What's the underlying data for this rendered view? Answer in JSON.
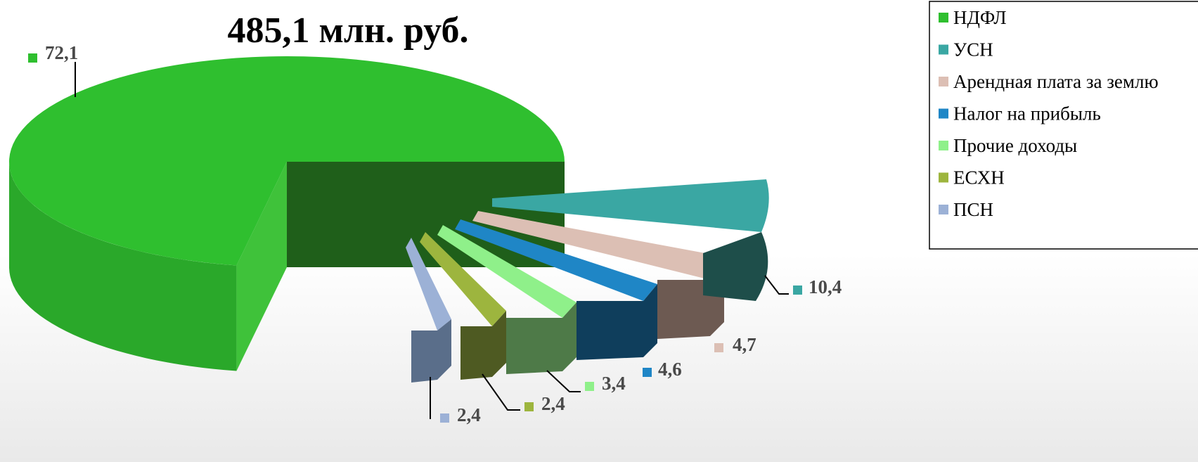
{
  "chart_data": {
    "type": "pie",
    "title": "485,1 млн. руб.",
    "series": [
      {
        "name": "НДФЛ",
        "value": 72.1,
        "label": "72,1",
        "color": "#2fbf2f",
        "side": "#1f5f1a"
      },
      {
        "name": "УСН",
        "value": 10.4,
        "label": "10,4",
        "color": "#3aa7a3",
        "side": "#1e4e4a"
      },
      {
        "name": "Арендная плата за землю",
        "value": 4.7,
        "label": "4,7",
        "color": "#dcbfb4",
        "side": "#6d5a52"
      },
      {
        "name": "Налог на прибыль",
        "value": 4.6,
        "label": "4,6",
        "color": "#1f86c6",
        "side": "#0f3e5c"
      },
      {
        "name": "Прочие доходы",
        "value": 3.4,
        "label": "3,4",
        "color": "#8ff08a",
        "side": "#4e7a48"
      },
      {
        "name": "ЕСХН",
        "value": 2.4,
        "label": "2,4",
        "color": "#9db53e",
        "side": "#4e5a22"
      },
      {
        "name": "ПСН",
        "value": 2.4,
        "label": "2,4",
        "color": "#9cb1d6",
        "side": "#5a6e8a"
      }
    ],
    "legend_position": "top-right"
  }
}
